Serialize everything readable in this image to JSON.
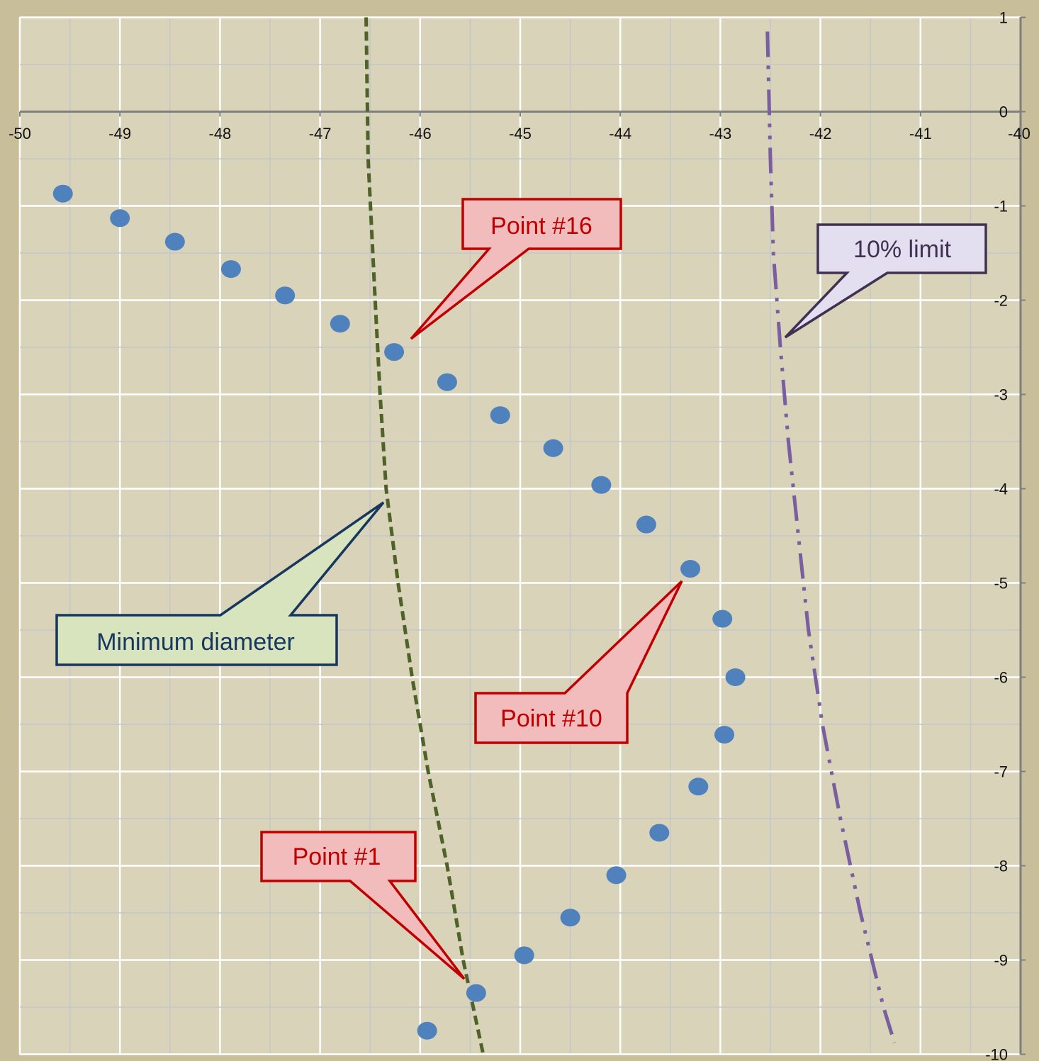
{
  "chart_data": {
    "type": "scatter",
    "title": "",
    "xlabel": "",
    "ylabel": "",
    "xlim": [
      -50,
      -40
    ],
    "ylim": [
      -10,
      1
    ],
    "x_ticks": [
      -50,
      -49,
      -48,
      -47,
      -46,
      -45,
      -44,
      -43,
      -42,
      -41,
      -40
    ],
    "y_ticks": [
      1,
      0,
      -1,
      -2,
      -3,
      -4,
      -5,
      -6,
      -7,
      -8,
      -9,
      -10
    ],
    "grid": true,
    "legend": "none",
    "series": [
      {
        "type": "scatter",
        "color": "#4f81bd",
        "points": [
          {
            "x": -45.93,
            "y": -9.75
          },
          {
            "x": -45.44,
            "y": -9.35
          },
          {
            "x": -44.96,
            "y": -8.95
          },
          {
            "x": -44.5,
            "y": -8.55
          },
          {
            "x": -44.04,
            "y": -8.1
          },
          {
            "x": -43.61,
            "y": -7.65
          },
          {
            "x": -43.22,
            "y": -7.16
          },
          {
            "x": -42.96,
            "y": -6.61
          },
          {
            "x": -42.85,
            "y": -6.0
          },
          {
            "x": -42.98,
            "y": -5.38
          },
          {
            "x": -43.3,
            "y": -4.85
          },
          {
            "x": -43.74,
            "y": -4.38
          },
          {
            "x": -44.19,
            "y": -3.96
          },
          {
            "x": -44.67,
            "y": -3.57
          },
          {
            "x": -45.2,
            "y": -3.22
          },
          {
            "x": -45.73,
            "y": -2.87
          },
          {
            "x": -46.26,
            "y": -2.55
          },
          {
            "x": -46.8,
            "y": -2.25
          },
          {
            "x": -47.35,
            "y": -1.95
          },
          {
            "x": -47.89,
            "y": -1.67
          },
          {
            "x": -48.45,
            "y": -1.38
          },
          {
            "x": -49.0,
            "y": -1.13
          },
          {
            "x": -49.57,
            "y": -0.87
          }
        ]
      },
      {
        "type": "line",
        "style": "dashed",
        "color": "#4f6228",
        "points": [
          {
            "x": -46.54,
            "y": 1.0
          },
          {
            "x": -46.52,
            "y": -0.5
          },
          {
            "x": -46.45,
            "y": -2.0
          },
          {
            "x": -46.4,
            "y": -3.0
          },
          {
            "x": -46.34,
            "y": -4.0
          },
          {
            "x": -46.22,
            "y": -5.0
          },
          {
            "x": -46.08,
            "y": -6.0
          },
          {
            "x": -45.92,
            "y": -7.0
          },
          {
            "x": -45.73,
            "y": -8.0
          },
          {
            "x": -45.57,
            "y": -9.0
          },
          {
            "x": -45.37,
            "y": -10.0
          }
        ]
      },
      {
        "type": "line",
        "style": "dash-dot-dot",
        "color": "#7a5ea0",
        "points": [
          {
            "x": -42.53,
            "y": 0.85
          },
          {
            "x": -42.5,
            "y": -0.5
          },
          {
            "x": -42.47,
            "y": -1.5
          },
          {
            "x": -42.4,
            "y": -2.5
          },
          {
            "x": -42.32,
            "y": -3.5
          },
          {
            "x": -42.22,
            "y": -4.5
          },
          {
            "x": -42.12,
            "y": -5.5
          },
          {
            "x": -41.98,
            "y": -6.5
          },
          {
            "x": -41.8,
            "y": -7.5
          },
          {
            "x": -41.6,
            "y": -8.5
          },
          {
            "x": -41.37,
            "y": -9.5
          },
          {
            "x": -41.26,
            "y": -9.88
          }
        ]
      }
    ],
    "annotations": [
      {
        "text": "Point #16",
        "target": {
          "x": -46.12,
          "y": -2.4
        },
        "fill": "#f2bcbc",
        "stroke": "#c00000",
        "text_color": "#c00000"
      },
      {
        "text": "10% limit",
        "target": {
          "x": -42.36,
          "y": -2.4
        },
        "fill": "#e4dff0",
        "stroke": "#3f3151",
        "text_color": "#3f3151"
      },
      {
        "text": "Minimum diameter",
        "target": {
          "x": -46.38,
          "y": -4.15
        },
        "fill": "#d7e4bd",
        "stroke": "#17375e",
        "text_color": "#17375e"
      },
      {
        "text": "Point #10",
        "target": {
          "x": -43.43,
          "y": -4.98
        },
        "fill": "#f2bcbc",
        "stroke": "#c00000",
        "text_color": "#c00000"
      },
      {
        "text": "Point #1",
        "target": {
          "x": -45.6,
          "y": -9.18
        },
        "fill": "#f2bcbc",
        "stroke": "#c00000",
        "text_color": "#c00000"
      }
    ]
  }
}
